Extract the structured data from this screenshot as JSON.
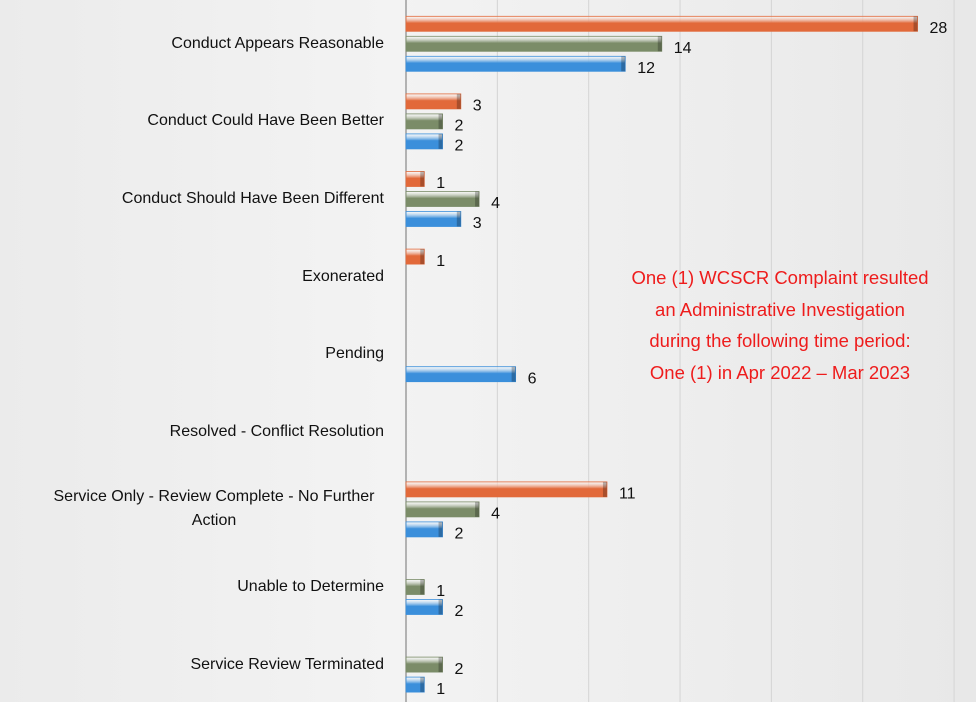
{
  "chart_data": {
    "type": "bar",
    "orientation": "horizontal",
    "categories": [
      "Conduct Appears Reasonable",
      "Conduct Could Have Been Better",
      "Conduct Should Have Been Different",
      "Exonerated",
      "Pending",
      "Resolved - Conflict Resolution",
      "Service Only - Review Complete - No Further Action",
      "Unable to Determine",
      "Service Review Terminated"
    ],
    "series": [
      {
        "color": "#e2693a",
        "values": [
          28,
          3,
          1,
          1,
          null,
          null,
          11,
          null,
          null
        ]
      },
      {
        "color": "#7b8c68",
        "values": [
          14,
          2,
          4,
          null,
          null,
          null,
          4,
          1,
          2
        ]
      },
      {
        "color": "#3b8fdb",
        "values": [
          12,
          2,
          3,
          null,
          6,
          null,
          2,
          2,
          1
        ]
      }
    ],
    "xlim": [
      0,
      31.2
    ],
    "xticks": [
      0,
      5,
      10,
      15,
      20,
      25,
      30
    ],
    "grid": true,
    "annotation": [
      "One (1) WCSCR Complaint resulted",
      "an Administrative Investigation",
      "during the following time period:",
      "One (1) in Apr 2022 – Mar 2023"
    ]
  }
}
